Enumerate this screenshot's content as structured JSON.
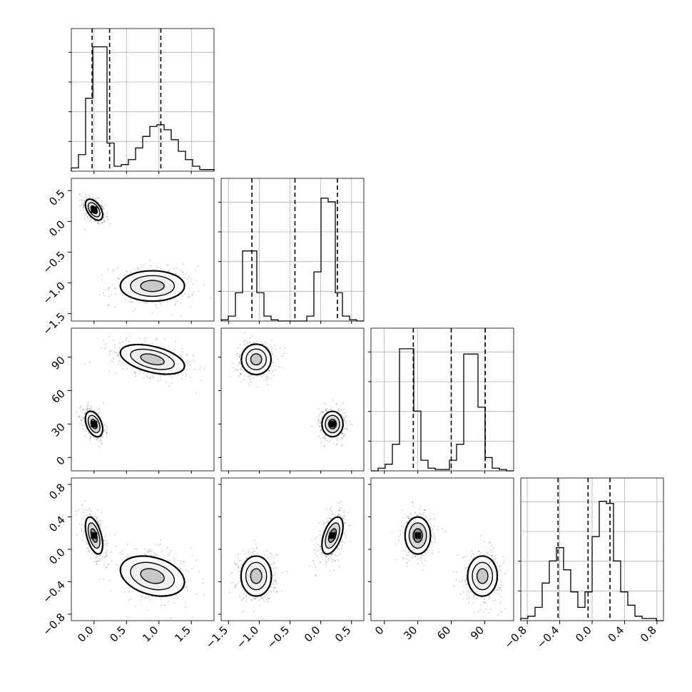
{
  "figure": {
    "type": "corner-plot",
    "colors": {
      "contour": "#000000",
      "grid": "#b0b0b0",
      "frame": "#000000",
      "background": "#ffffff"
    }
  },
  "chart_data": {
    "type": "corner",
    "parameters": [
      {
        "range": [
          -0.35,
          1.85
        ],
        "ticks": [
          {
            "v": 0,
            "label": "0.0"
          },
          {
            "v": 0.5,
            "label": "0.5"
          },
          {
            "v": 1.0,
            "label": "1.0"
          },
          {
            "v": 1.5,
            "label": "1.5"
          }
        ],
        "quantiles": [
          -0.03,
          0.24,
          1.03
        ]
      },
      {
        "range": [
          -1.62,
          0.7
        ],
        "ticks": [
          {
            "v": -1.5,
            "label": "−1.5"
          },
          {
            "v": -1.0,
            "label": "−1.0"
          },
          {
            "v": -0.5,
            "label": "−0.5"
          },
          {
            "v": 0.0,
            "label": "0.0"
          },
          {
            "v": 0.5,
            "label": "0.5"
          }
        ],
        "quantiles": [
          -1.12,
          -0.42,
          0.27
        ]
      },
      {
        "range": [
          -12,
          116
        ],
        "ticks": [
          {
            "v": 0,
            "label": "0"
          },
          {
            "v": 30,
            "label": "30"
          },
          {
            "v": 60,
            "label": "60"
          },
          {
            "v": 90,
            "label": "90"
          }
        ],
        "quantiles": [
          26,
          60,
          90.5
        ]
      },
      {
        "range": [
          -0.88,
          0.88
        ],
        "ticks": [
          {
            "v": -0.8,
            "label": "−0.8"
          },
          {
            "v": -0.4,
            "label": "−0.4"
          },
          {
            "v": 0.0,
            "label": "0.0"
          },
          {
            "v": 0.4,
            "label": "0.4"
          },
          {
            "v": 0.8,
            "label": "0.8"
          }
        ],
        "quantiles": [
          -0.42,
          -0.05,
          0.22
        ]
      }
    ],
    "histograms": [
      {
        "param": 0,
        "edges_start": -0.35,
        "bin_width": 0.11,
        "counts": [
          2,
          10,
          44,
          75,
          75,
          17,
          3,
          4,
          7,
          14,
          21,
          27,
          28,
          25,
          19,
          12,
          7,
          3,
          1,
          1
        ],
        "ymax": 80
      },
      {
        "param": 1,
        "edges_start": -1.62,
        "bin_width": 0.116,
        "counts": [
          1,
          4,
          23,
          57,
          57,
          23,
          4,
          1,
          0,
          0,
          0,
          0,
          4,
          40,
          100,
          97,
          23,
          4,
          1,
          0
        ],
        "ymax": 108
      },
      {
        "param": 2,
        "edges_start": -12,
        "bin_width": 6.4,
        "counts": [
          0,
          2,
          5,
          20,
          92,
          92,
          45,
          8,
          2,
          1,
          1,
          8,
          20,
          88,
          88,
          48,
          10,
          2,
          1,
          0
        ],
        "ymax": 100
      },
      {
        "param": 3,
        "edges_start": -0.88,
        "bin_width": 0.088,
        "counts": [
          1,
          2,
          6,
          17,
          27,
          33,
          23,
          13,
          6,
          13,
          38,
          54,
          53,
          27,
          13,
          7,
          2,
          1,
          1,
          0
        ],
        "ymax": 60
      }
    ],
    "modes": [
      {
        "center": [
          0.0,
          0.19,
          30,
          0.17
        ],
        "sigma": [
          0.07,
          0.09,
          6.0,
          0.12
        ],
        "weight": 0.5,
        "corr": {
          "0-1": -0.5,
          "0-2": -0.4,
          "0-3": -0.5,
          "1-2": 0.0,
          "1-3": 0.5,
          "2-3": 0.0
        }
      },
      {
        "center": [
          0.9,
          -1.05,
          88,
          -0.33
        ],
        "sigma": [
          0.26,
          0.13,
          7.0,
          0.13
        ],
        "weight": 0.5,
        "corr": {
          "0-1": 0.0,
          "0-2": -0.45,
          "0-3": -0.3,
          "1-2": 0.0,
          "1-3": 0.0,
          "2-3": 0.0
        }
      }
    ],
    "contour_levels_sigma": [
      0.7,
      1.3,
      1.9
    ],
    "grid": true,
    "quantile_line_style": "dashed"
  }
}
